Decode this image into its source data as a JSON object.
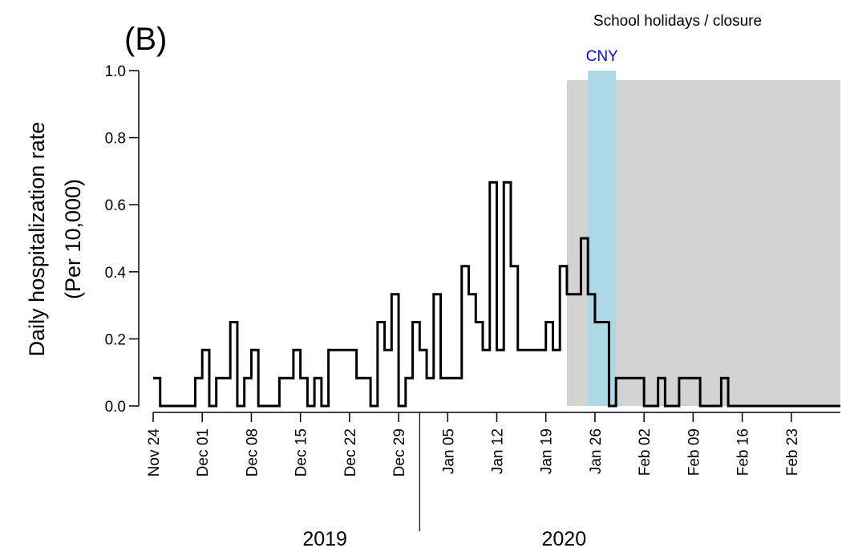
{
  "chart_data": {
    "type": "line",
    "panel_label": "(B)",
    "ylabel_line1": "Daily hospitalization rate",
    "ylabel_line2": "(Per 10,000)",
    "ylim": [
      0,
      1.0
    ],
    "yticks": [
      0.0,
      0.2,
      0.4,
      0.6,
      0.8,
      1.0
    ],
    "ytick_labels": [
      "0.0",
      "0.2",
      "0.4",
      "0.6",
      "0.8",
      "1.0"
    ],
    "x_start": "2019-11-24",
    "x_end": "2020-02-29",
    "xtick_dates": [
      "2019-11-24",
      "2019-12-01",
      "2019-12-08",
      "2019-12-15",
      "2019-12-22",
      "2019-12-29",
      "2020-01-05",
      "2020-01-12",
      "2020-01-19",
      "2020-01-26",
      "2020-02-02",
      "2020-02-09",
      "2020-02-16",
      "2020-02-23"
    ],
    "xtick_labels": [
      "Nov 24",
      "Dec 01",
      "Dec 08",
      "Dec 15",
      "Dec 22",
      "Dec 29",
      "Jan 05",
      "Jan 12",
      "Jan 19",
      "Jan 26",
      "Feb 02",
      "Feb 09",
      "Feb 16",
      "Feb 23"
    ],
    "year_labels": [
      "2019",
      "2020"
    ],
    "year_divider_date": "2020-01-01",
    "step_style": "steps",
    "series": [
      {
        "color": "#000000",
        "x": [
          "2019-11-24",
          "2019-11-25",
          "2019-11-26",
          "2019-11-27",
          "2019-11-28",
          "2019-11-29",
          "2019-11-30",
          "2019-12-01",
          "2019-12-02",
          "2019-12-03",
          "2019-12-04",
          "2019-12-05",
          "2019-12-06",
          "2019-12-07",
          "2019-12-08",
          "2019-12-09",
          "2019-12-10",
          "2019-12-11",
          "2019-12-12",
          "2019-12-13",
          "2019-12-14",
          "2019-12-15",
          "2019-12-16",
          "2019-12-17",
          "2019-12-18",
          "2019-12-19",
          "2019-12-20",
          "2019-12-21",
          "2019-12-22",
          "2019-12-23",
          "2019-12-24",
          "2019-12-25",
          "2019-12-26",
          "2019-12-27",
          "2019-12-28",
          "2019-12-29",
          "2019-12-30",
          "2019-12-31",
          "2020-01-01",
          "2020-01-02",
          "2020-01-03",
          "2020-01-04",
          "2020-01-05",
          "2020-01-06",
          "2020-01-07",
          "2020-01-08",
          "2020-01-09",
          "2020-01-10",
          "2020-01-11",
          "2020-01-12",
          "2020-01-13",
          "2020-01-14",
          "2020-01-15",
          "2020-01-16",
          "2020-01-17",
          "2020-01-18",
          "2020-01-19",
          "2020-01-20",
          "2020-01-21",
          "2020-01-22",
          "2020-01-23",
          "2020-01-24",
          "2020-01-25",
          "2020-01-26",
          "2020-01-27",
          "2020-01-28",
          "2020-01-29",
          "2020-01-30",
          "2020-01-31",
          "2020-02-01",
          "2020-02-02",
          "2020-02-03",
          "2020-02-04",
          "2020-02-05",
          "2020-02-06",
          "2020-02-07",
          "2020-02-08",
          "2020-02-09",
          "2020-02-10",
          "2020-02-11",
          "2020-02-12",
          "2020-02-13",
          "2020-02-14",
          "2020-02-15",
          "2020-02-16",
          "2020-02-17",
          "2020-02-18",
          "2020-02-19",
          "2020-02-20",
          "2020-02-21",
          "2020-02-22",
          "2020-02-23",
          "2020-02-24",
          "2020-02-25",
          "2020-02-26",
          "2020-02-27",
          "2020-02-28",
          "2020-02-29"
        ],
        "values": [
          0.083,
          0,
          0,
          0,
          0,
          0,
          0.083,
          0.167,
          0,
          0.083,
          0.083,
          0.25,
          0,
          0.083,
          0.167,
          0,
          0,
          0,
          0.083,
          0.083,
          0.167,
          0.083,
          0,
          0.083,
          0,
          0.167,
          0.167,
          0.167,
          0.167,
          0.083,
          0.083,
          0,
          0.25,
          0.167,
          0.333,
          0,
          0.083,
          0.25,
          0.167,
          0.083,
          0.333,
          0.083,
          0.083,
          0.083,
          0.417,
          0.333,
          0.25,
          0.167,
          0.667,
          0.167,
          0.667,
          0.417,
          0.167,
          0.167,
          0.167,
          0.167,
          0.25,
          0.167,
          0.417,
          0.333,
          0.333,
          0.5,
          0.333,
          0.25,
          0.25,
          0,
          0.083,
          0.083,
          0.083,
          0.083,
          0,
          0,
          0.083,
          0,
          0,
          0.083,
          0.083,
          0.083,
          0,
          0,
          0,
          0.083,
          0,
          0,
          0,
          0,
          0,
          0,
          0,
          0,
          0,
          0,
          0,
          0,
          0,
          0,
          0,
          0
        ]
      }
    ],
    "shaded_regions": [
      {
        "label": "School holidays / closure",
        "start": "2020-01-22",
        "end": "2020-02-29",
        "color": "#d3d3d3",
        "label_color": "#000000"
      },
      {
        "label": "CNY",
        "start": "2020-01-25",
        "end": "2020-01-28",
        "color": "#add8e6",
        "label_color": "#0000ff"
      }
    ],
    "grid": false,
    "legend": "none"
  }
}
